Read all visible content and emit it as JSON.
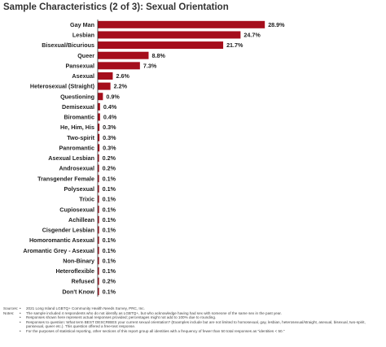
{
  "title": "Sample Characteristics (2 of 3): Sexual Orientation",
  "chart_data": {
    "type": "bar",
    "orientation": "horizontal",
    "categories": [
      "Gay Man",
      "Lesbian",
      "Bisexual/Bicurious",
      "Queer",
      "Pansexual",
      "Asexual",
      "Heterosexual (Straight)",
      "Questioning",
      "Demisexual",
      "Biromantic",
      "He, Him, His",
      "Two-spirit",
      "Panromantic",
      "Asexual Lesbian",
      "Androsexual",
      "Transgender Female",
      "Polysexual",
      "Trixic",
      "Cupiosexual",
      "Achillean",
      "Cisgender Lesbian",
      "Homoromantic Asexual",
      "Aromantic Grey - Asexual",
      "Non-Binary",
      "Heteroflexible",
      "Refused",
      "Don't Know"
    ],
    "values": [
      28.9,
      24.7,
      21.7,
      8.8,
      7.3,
      2.6,
      2.2,
      0.9,
      0.4,
      0.4,
      0.3,
      0.3,
      0.3,
      0.2,
      0.2,
      0.1,
      0.1,
      0.1,
      0.1,
      0.1,
      0.1,
      0.1,
      0.1,
      0.1,
      0.1,
      0.2,
      0.1
    ],
    "value_labels": [
      "28.9%",
      "24.7%",
      "21.7%",
      "8.8%",
      "7.3%",
      "2.6%",
      "2.2%",
      "0.9%",
      "0.4%",
      "0.4%",
      "0.3%",
      "0.3%",
      "0.3%",
      "0.2%",
      "0.2%",
      "0.1%",
      "0.1%",
      "0.1%",
      "0.1%",
      "0.1%",
      "0.1%",
      "0.1%",
      "0.1%",
      "0.1%",
      "0.1%",
      "0.2%",
      "0.1%"
    ],
    "xlim": [
      0,
      30
    ],
    "grid": false,
    "bar_color": "#a50e1c",
    "axis_color": "#333333"
  },
  "notes": {
    "sources_label": "Sources:",
    "sources_text": "2021 Long Island LGBTQ+ Community Health Needs Survey, PRC, Inc.",
    "notes_label": "Notes:",
    "items": [
      "The sample included 4 respondents who do not identify as LGBTQ+, but who acknowledge having had sex with someone of the same sex in the past year.",
      "Responses shown here represent actual responses provided; percentages might not add to 100% due to rounding.",
      "Responses to question: What term BEST DESCRIBES your current sexual orientation? (Examples include but are not limited to homosexual, gay, lesbian, heterosexual/straight, asexual, bisexual, two-spirit, pansexual, queer etc.). This question offered a free-text response.",
      "For the purposes of statistical reporting, other sections of this report group all identities with a frequency of fewer than 50 total responses as \"identities < 50.\""
    ],
    "bullet": "•"
  }
}
